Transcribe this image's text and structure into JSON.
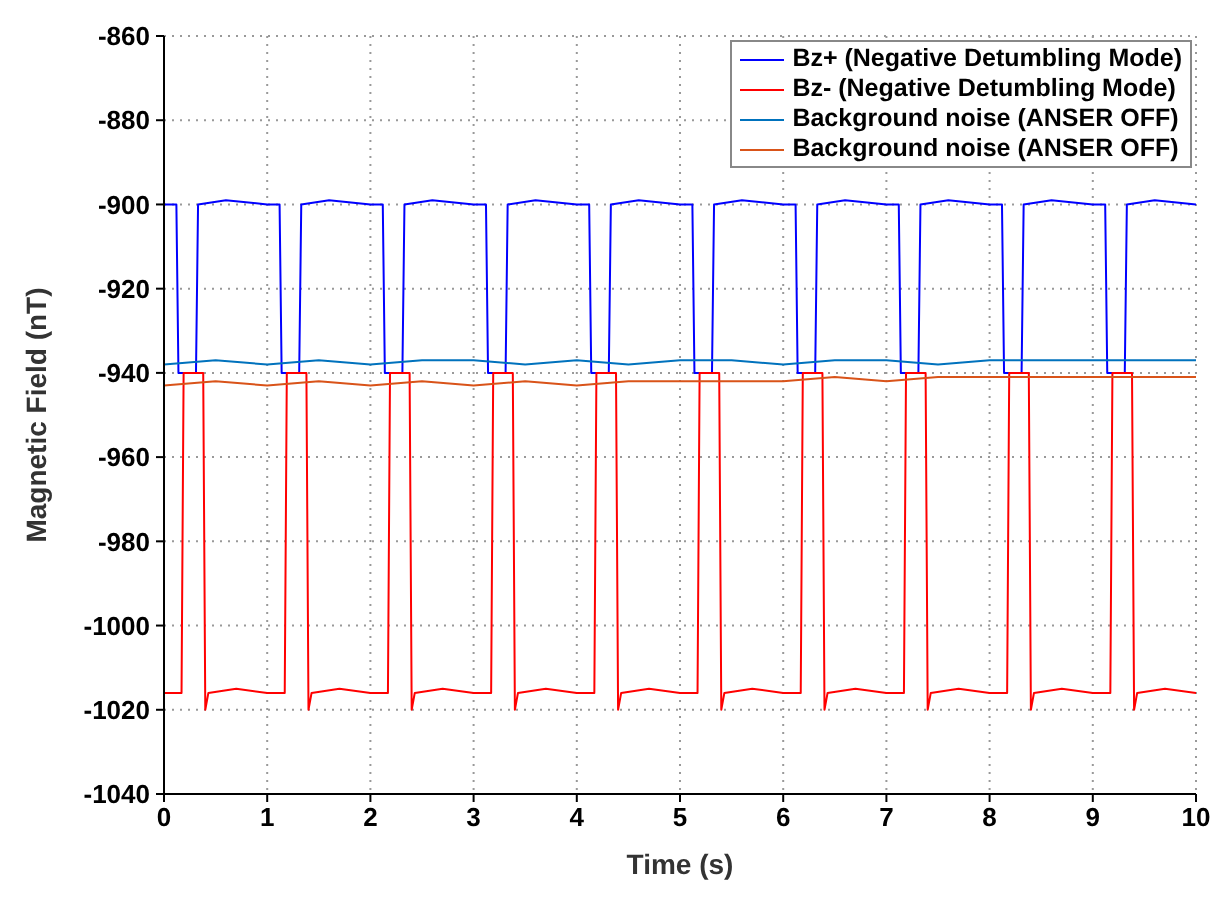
{
  "chart_data": {
    "type": "line",
    "xlabel": "Time (s)",
    "ylabel": "Magnetic Field (nT)",
    "xlim": [
      0,
      10
    ],
    "xticks": [
      0,
      1,
      2,
      3,
      4,
      5,
      6,
      7,
      8,
      9,
      10
    ],
    "ylim": [
      -1040,
      -860
    ],
    "yticks": [
      -1040,
      -1020,
      -1000,
      -980,
      -960,
      -940,
      -920,
      -900,
      -880,
      -860
    ],
    "grid": true,
    "legend": "top right",
    "marker": "none",
    "line_style": "solid",
    "series": [
      {
        "name": "Bz+ (Negative Detumbling Mode)",
        "color": "#0000ff",
        "x": [
          0,
          0.12,
          0.14,
          0.31,
          0.33,
          0.6,
          1,
          1.12,
          1.14,
          1.31,
          1.33,
          1.6,
          2,
          2.12,
          2.14,
          2.31,
          2.33,
          2.6,
          3,
          3.12,
          3.14,
          3.31,
          3.33,
          3.6,
          4,
          4.12,
          4.14,
          4.31,
          4.33,
          4.6,
          5,
          5.12,
          5.14,
          5.31,
          5.33,
          5.6,
          6,
          6.12,
          6.14,
          6.31,
          6.33,
          6.6,
          7,
          7.12,
          7.14,
          7.31,
          7.33,
          7.6,
          8,
          8.12,
          8.14,
          8.31,
          8.33,
          8.6,
          9,
          9.12,
          9.14,
          9.31,
          9.33,
          9.6,
          10
        ],
        "values": [
          -900,
          -900,
          -940,
          -940,
          -900,
          -899,
          -900,
          -900,
          -940,
          -940,
          -900,
          -899,
          -900,
          -900,
          -940,
          -940,
          -900,
          -899,
          -900,
          -900,
          -940,
          -940,
          -900,
          -899,
          -900,
          -900,
          -940,
          -940,
          -900,
          -899,
          -900,
          -900,
          -940,
          -940,
          -900,
          -899,
          -900,
          -900,
          -940,
          -940,
          -900,
          -899,
          -900,
          -900,
          -940,
          -940,
          -900,
          -899,
          -900,
          -900,
          -940,
          -940,
          -900,
          -899,
          -900,
          -900,
          -940,
          -940,
          -900,
          -899,
          -900
        ]
      },
      {
        "name": "Bz- (Negative Detumbling Mode)",
        "color": "#ff0000",
        "x": [
          0,
          0.17,
          0.19,
          0.38,
          0.4,
          0.43,
          0.7,
          1,
          1.17,
          1.19,
          1.38,
          1.4,
          1.43,
          1.7,
          2,
          2.17,
          2.19,
          2.38,
          2.4,
          2.43,
          2.7,
          3,
          3.17,
          3.19,
          3.38,
          3.4,
          3.43,
          3.7,
          4,
          4.17,
          4.19,
          4.38,
          4.4,
          4.43,
          4.7,
          5,
          5.17,
          5.19,
          5.38,
          5.4,
          5.43,
          5.7,
          6,
          6.17,
          6.19,
          6.38,
          6.4,
          6.43,
          6.7,
          7,
          7.17,
          7.19,
          7.38,
          7.4,
          7.43,
          7.7,
          8,
          8.17,
          8.19,
          8.38,
          8.4,
          8.43,
          8.7,
          9,
          9.17,
          9.19,
          9.38,
          9.4,
          9.43,
          9.7,
          10
        ],
        "values": [
          -1016,
          -1016,
          -940,
          -940,
          -1020,
          -1016,
          -1015,
          -1016,
          -1016,
          -940,
          -940,
          -1020,
          -1016,
          -1015,
          -1016,
          -1016,
          -940,
          -940,
          -1020,
          -1016,
          -1015,
          -1016,
          -1016,
          -940,
          -940,
          -1020,
          -1016,
          -1015,
          -1016,
          -1016,
          -940,
          -940,
          -1020,
          -1016,
          -1015,
          -1016,
          -1016,
          -940,
          -940,
          -1020,
          -1016,
          -1015,
          -1016,
          -1016,
          -940,
          -940,
          -1020,
          -1016,
          -1015,
          -1016,
          -1016,
          -940,
          -940,
          -1020,
          -1016,
          -1015,
          -1016,
          -1016,
          -940,
          -940,
          -1020,
          -1016,
          -1015,
          -1016,
          -1016,
          -940,
          -940,
          -1020,
          -1016,
          -1015,
          -1016
        ]
      },
      {
        "name": "Background noise (ANSER OFF)",
        "color": "#0072bd",
        "x": [
          0,
          0.5,
          1,
          1.5,
          2,
          2.5,
          3,
          3.5,
          4,
          4.5,
          5,
          5.5,
          6,
          6.5,
          7,
          7.5,
          8,
          8.5,
          9,
          9.5,
          10
        ],
        "values": [
          -938,
          -937,
          -938,
          -937,
          -938,
          -937,
          -937,
          -938,
          -937,
          -938,
          -937,
          -937,
          -938,
          -937,
          -937,
          -938,
          -937,
          -937,
          -937,
          -937,
          -937
        ]
      },
      {
        "name": "Background noise (ANSER OFF)",
        "color": "#d95319",
        "x": [
          0,
          0.5,
          1,
          1.5,
          2,
          2.5,
          3,
          3.5,
          4,
          4.5,
          5,
          5.5,
          6,
          6.5,
          7,
          7.5,
          8,
          8.5,
          9,
          9.5,
          10
        ],
        "values": [
          -943,
          -942,
          -943,
          -942,
          -943,
          -942,
          -943,
          -942,
          -943,
          -942,
          -942,
          -942,
          -942,
          -941,
          -942,
          -941,
          -941,
          -941,
          -941,
          -941,
          -941
        ]
      }
    ]
  }
}
